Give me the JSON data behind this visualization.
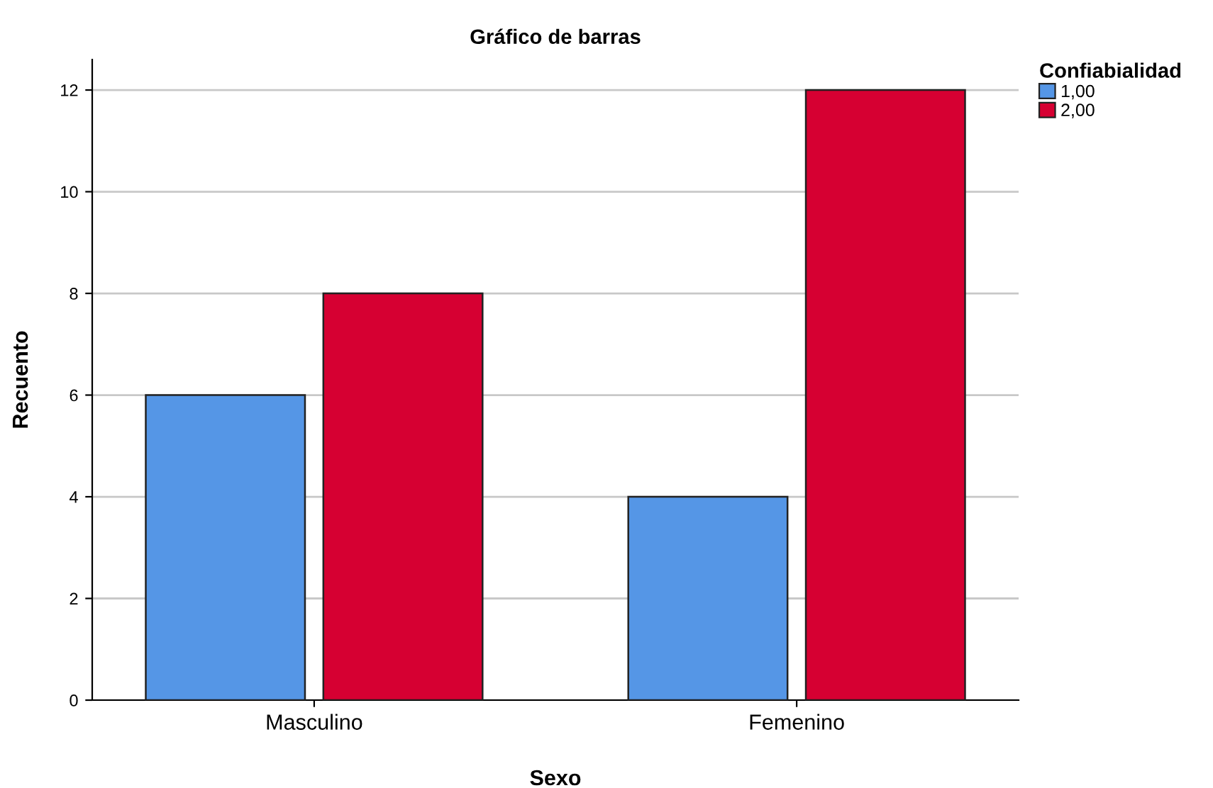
{
  "chart_data": {
    "type": "bar",
    "title": "Gráfico de barras",
    "xlabel": "Sexo",
    "ylabel": "Recuento",
    "legend_title": "Confiabialidad",
    "categories": [
      "Masculino",
      "Femenino"
    ],
    "series": [
      {
        "name": "1,00",
        "color": "#5596e6",
        "values": [
          6,
          4
        ]
      },
      {
        "name": "2,00",
        "color": "#d60032",
        "values": [
          8,
          12
        ]
      }
    ],
    "ylim": [
      0,
      12.6
    ],
    "yticks": [
      0,
      2,
      4,
      6,
      8,
      10,
      12
    ],
    "grid": "y",
    "legend": "top right"
  }
}
